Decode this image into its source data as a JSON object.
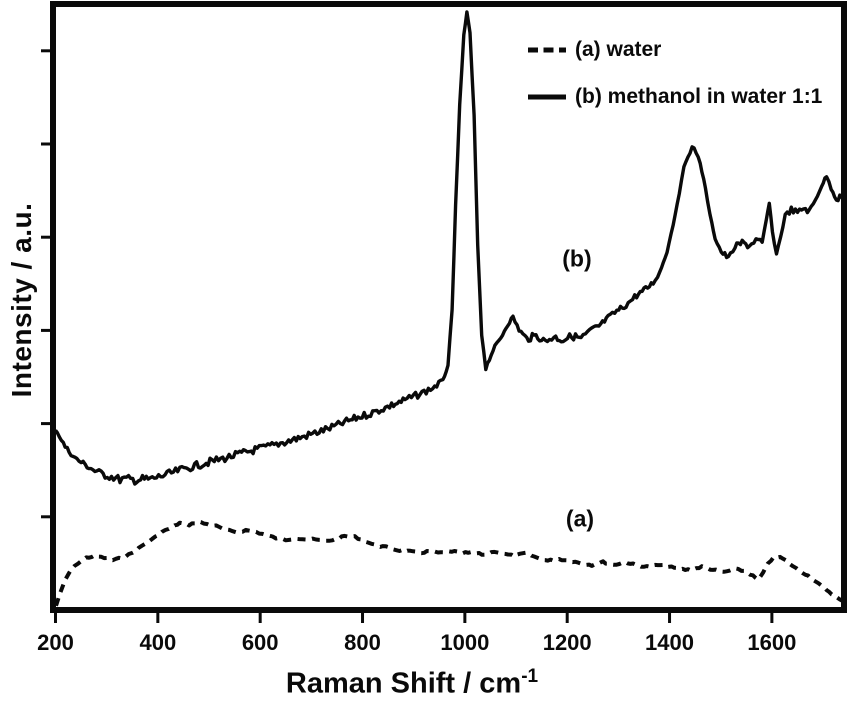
{
  "figure": {
    "y_axis_label": "Intensity / a.u.",
    "x_axis_label_base": "Raman Shift / cm",
    "x_axis_label_superscript": "-1"
  },
  "legend": {
    "items": [
      {
        "id": "a",
        "label": "(a) water",
        "line_style": "dashed"
      },
      {
        "id": "b",
        "label": "(b) methanol in water 1:1",
        "line_style": "solid"
      }
    ]
  },
  "annotations": [
    {
      "text": "(b)",
      "x_cm1": 1219,
      "y_au": 58.5
    },
    {
      "text": "(a)",
      "x_cm1": 1225,
      "y_au": 15.2
    }
  ],
  "chart_data": {
    "type": "line",
    "title": "",
    "xlabel": "Raman Shift / cm-1",
    "ylabel": "Intensity / a.u.",
    "x_range": [
      200,
      1750
    ],
    "y_range_au": [
      0,
      100
    ],
    "x_ticks": [
      200,
      400,
      600,
      800,
      1000,
      1200,
      1400,
      1600
    ],
    "x_tick_labels": [
      "200",
      "400",
      "600",
      "800",
      "1000",
      "1200",
      "1400",
      "1600"
    ],
    "y_ticks_labeled": false,
    "y_tick_count": 6,
    "grid": false,
    "legend_position": "top-inside",
    "line_color": "#0a0a0a",
    "peaks_cm1_series_b": [
      1004,
      1445,
      1595,
      1707
    ],
    "series": [
      {
        "name": "(a) water",
        "style": "dashed",
        "noise_amp": 1.1,
        "stroke_width": 4,
        "points": [
          [
            201,
            0.7
          ],
          [
            209,
            2.8
          ],
          [
            219,
            5.0
          ],
          [
            230,
            6.7
          ],
          [
            244,
            7.8
          ],
          [
            260,
            8.7
          ],
          [
            277,
            9.0
          ],
          [
            295,
            8.7
          ],
          [
            312,
            8.3
          ],
          [
            330,
            8.7
          ],
          [
            350,
            9.5
          ],
          [
            369,
            10.7
          ],
          [
            389,
            11.8
          ],
          [
            408,
            13.0
          ],
          [
            428,
            13.8
          ],
          [
            443,
            14.5
          ],
          [
            461,
            14.2
          ],
          [
            478,
            14.7
          ],
          [
            496,
            14.3
          ],
          [
            514,
            14.0
          ],
          [
            533,
            13.3
          ],
          [
            553,
            13.0
          ],
          [
            572,
            13.3
          ],
          [
            592,
            13.0
          ],
          [
            611,
            12.5
          ],
          [
            631,
            12.0
          ],
          [
            650,
            11.7
          ],
          [
            670,
            12.0
          ],
          [
            689,
            11.8
          ],
          [
            709,
            11.7
          ],
          [
            728,
            11.5
          ],
          [
            748,
            11.8
          ],
          [
            765,
            12.3
          ],
          [
            785,
            12.2
          ],
          [
            804,
            11.5
          ],
          [
            824,
            10.8
          ],
          [
            845,
            10.5
          ],
          [
            867,
            10.0
          ],
          [
            888,
            9.8
          ],
          [
            910,
            9.5
          ],
          [
            931,
            9.8
          ],
          [
            953,
            9.5
          ],
          [
            974,
            9.8
          ],
          [
            996,
            9.5
          ],
          [
            1017,
            9.5
          ],
          [
            1039,
            9.2
          ],
          [
            1058,
            9.8
          ],
          [
            1078,
            9.3
          ],
          [
            1097,
            9.0
          ],
          [
            1119,
            9.5
          ],
          [
            1141,
            8.7
          ],
          [
            1162,
            8.2
          ],
          [
            1184,
            8.5
          ],
          [
            1205,
            8.2
          ],
          [
            1227,
            7.8
          ],
          [
            1248,
            7.5
          ],
          [
            1270,
            8.0
          ],
          [
            1291,
            7.5
          ],
          [
            1313,
            8.0
          ],
          [
            1334,
            7.5
          ],
          [
            1356,
            7.2
          ],
          [
            1377,
            7.5
          ],
          [
            1399,
            7.2
          ],
          [
            1420,
            6.8
          ],
          [
            1442,
            6.7
          ],
          [
            1463,
            7.2
          ],
          [
            1485,
            6.7
          ],
          [
            1506,
            6.3
          ],
          [
            1528,
            6.8
          ],
          [
            1547,
            6.5
          ],
          [
            1563,
            5.7
          ],
          [
            1573,
            5.0
          ],
          [
            1583,
            6.2
          ],
          [
            1592,
            7.8
          ],
          [
            1604,
            8.7
          ],
          [
            1616,
            8.8
          ],
          [
            1628,
            8.2
          ],
          [
            1641,
            7.3
          ],
          [
            1655,
            6.5
          ],
          [
            1671,
            5.7
          ],
          [
            1686,
            4.7
          ],
          [
            1702,
            3.7
          ],
          [
            1717,
            2.7
          ],
          [
            1733,
            1.7
          ],
          [
            1747,
            1.0
          ]
        ]
      },
      {
        "name": "(b) methanol in water 1:1",
        "style": "solid",
        "noise_amp": 4.6,
        "stroke_width": 3.4,
        "points": [
          [
            200,
            30.2
          ],
          [
            219,
            27.2
          ],
          [
            238,
            25.3
          ],
          [
            258,
            24.2
          ],
          [
            277,
            23.2
          ],
          [
            297,
            22.5
          ],
          [
            326,
            21.8
          ],
          [
            355,
            21.7
          ],
          [
            385,
            21.8
          ],
          [
            414,
            22.5
          ],
          [
            443,
            23.3
          ],
          [
            472,
            24.0
          ],
          [
            502,
            24.7
          ],
          [
            531,
            25.3
          ],
          [
            560,
            26.0
          ],
          [
            590,
            26.7
          ],
          [
            619,
            27.3
          ],
          [
            648,
            28.0
          ],
          [
            678,
            28.7
          ],
          [
            707,
            29.5
          ],
          [
            736,
            30.3
          ],
          [
            765,
            31.3
          ],
          [
            795,
            32.2
          ],
          [
            824,
            33.0
          ],
          [
            853,
            34.0
          ],
          [
            883,
            35.0
          ],
          [
            912,
            36.0
          ],
          [
            937,
            37.0
          ],
          [
            957,
            38.2
          ],
          [
            967,
            40.8
          ],
          [
            975,
            50.0
          ],
          [
            982,
            67.5
          ],
          [
            990,
            84.2
          ],
          [
            998,
            95.8
          ],
          [
            1004,
            99.7
          ],
          [
            1010,
            96.2
          ],
          [
            1018,
            82.5
          ],
          [
            1025,
            60.8
          ],
          [
            1033,
            45.8
          ],
          [
            1041,
            40.3
          ],
          [
            1055,
            43.3
          ],
          [
            1070,
            45.3
          ],
          [
            1084,
            47.7
          ],
          [
            1094,
            48.8
          ],
          [
            1106,
            46.7
          ],
          [
            1121,
            45.2
          ],
          [
            1139,
            45.7
          ],
          [
            1157,
            44.8
          ],
          [
            1174,
            45.5
          ],
          [
            1192,
            45.0
          ],
          [
            1209,
            45.7
          ],
          [
            1227,
            45.3
          ],
          [
            1244,
            46.5
          ],
          [
            1262,
            47.3
          ],
          [
            1280,
            48.7
          ],
          [
            1297,
            49.8
          ],
          [
            1315,
            50.8
          ],
          [
            1332,
            52.2
          ],
          [
            1350,
            53.3
          ],
          [
            1368,
            54.5
          ],
          [
            1381,
            56.3
          ],
          [
            1395,
            59.7
          ],
          [
            1407,
            64.2
          ],
          [
            1419,
            69.5
          ],
          [
            1428,
            73.7
          ],
          [
            1436,
            75.8
          ],
          [
            1444,
            77.0
          ],
          [
            1452,
            76.3
          ],
          [
            1460,
            74.5
          ],
          [
            1470,
            70.3
          ],
          [
            1479,
            65.8
          ],
          [
            1489,
            62.0
          ],
          [
            1501,
            59.7
          ],
          [
            1515,
            58.7
          ],
          [
            1528,
            60.5
          ],
          [
            1542,
            61.2
          ],
          [
            1556,
            60.7
          ],
          [
            1569,
            61.7
          ],
          [
            1581,
            61.2
          ],
          [
            1589,
            65.0
          ],
          [
            1595,
            67.8
          ],
          [
            1601,
            63.0
          ],
          [
            1609,
            59.3
          ],
          [
            1617,
            62.2
          ],
          [
            1626,
            65.7
          ],
          [
            1638,
            66.7
          ],
          [
            1650,
            66.2
          ],
          [
            1662,
            67.0
          ],
          [
            1673,
            66.5
          ],
          [
            1685,
            68.3
          ],
          [
            1697,
            70.7
          ],
          [
            1707,
            72.3
          ],
          [
            1716,
            70.3
          ],
          [
            1726,
            68.5
          ],
          [
            1736,
            69.0
          ],
          [
            1745,
            68.3
          ]
        ]
      }
    ]
  }
}
